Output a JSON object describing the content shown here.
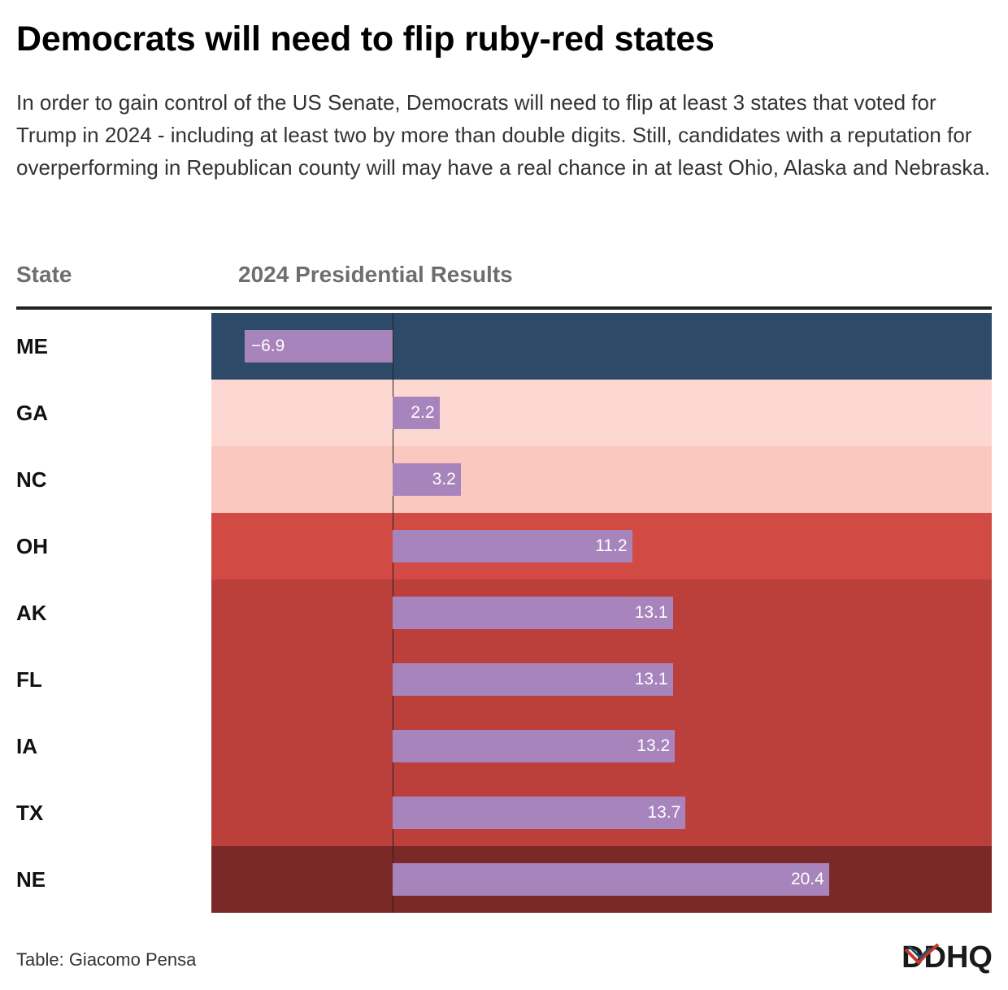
{
  "title": "Democrats will need to flip ruby-red states",
  "subtitle": "In order to gain control of the US Senate, Democrats will need to flip at least 3 states that voted for Trump in 2024 - including at least two by more than double digits. Still, candidates with a reputation for overperforming in Republican county will may have a real chance in at least Ohio, Alaska and Nebraska.",
  "columns": {
    "state": "State",
    "results": "2024 Presidential Results"
  },
  "source": "Table: Giacomo Pensa",
  "logo": {
    "name": "DDHQ",
    "text": "DDHQ"
  },
  "colors": {
    "bar": "#a884bd",
    "dem": "#2d4a68",
    "lean_r": "#fdd8d3",
    "lean_r2": "#fbc8c0",
    "likely_r": "#d14a44",
    "solid_r": "#bb403c",
    "safe_r": "#7b2926"
  },
  "chart_data": {
    "type": "table",
    "xlim": [
      -8.3,
      28
    ],
    "rows": [
      {
        "state": "ME",
        "value": -6.9,
        "label": "−6.9",
        "fill": "#2d4a68"
      },
      {
        "state": "GA",
        "value": 2.2,
        "label": "2.2",
        "fill": "#fdd8d3"
      },
      {
        "state": "NC",
        "value": 3.2,
        "label": "3.2",
        "fill": "#fbc8c0"
      },
      {
        "state": "OH",
        "value": 11.2,
        "label": "11.2",
        "fill": "#d14a44"
      },
      {
        "state": "AK",
        "value": 13.1,
        "label": "13.1",
        "fill": "#bb403c"
      },
      {
        "state": "FL",
        "value": 13.1,
        "label": "13.1",
        "fill": "#bb403c"
      },
      {
        "state": "IA",
        "value": 13.2,
        "label": "13.2",
        "fill": "#bb403c"
      },
      {
        "state": "TX",
        "value": 13.7,
        "label": "13.7",
        "fill": "#bb403c"
      },
      {
        "state": "NE",
        "value": 20.4,
        "label": "20.4",
        "fill": "#7b2926"
      }
    ]
  }
}
